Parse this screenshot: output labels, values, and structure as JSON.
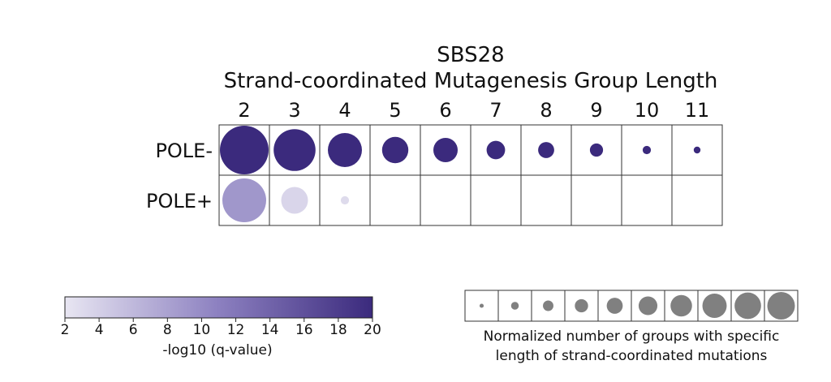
{
  "chart_data": {
    "type": "bubble-heatmap",
    "title": "SBS28",
    "subtitle": "Strand-coordinated Mutagenesis Group Length",
    "columns": [
      "2",
      "3",
      "4",
      "5",
      "6",
      "7",
      "8",
      "9",
      "10",
      "11"
    ],
    "rows": [
      {
        "label": "POLE-",
        "size": [
          1.0,
          0.86,
          0.7,
          0.54,
          0.5,
          0.38,
          0.33,
          0.27,
          0.17,
          0.14
        ],
        "neglog10_q": [
          20,
          20,
          20,
          20,
          20,
          20,
          20,
          20,
          20,
          20
        ]
      },
      {
        "label": "POLE+",
        "size": [
          0.9,
          0.55,
          0.17,
          null,
          null,
          null,
          null,
          null,
          null,
          null
        ],
        "neglog10_q": [
          9,
          3.5,
          3,
          null,
          null,
          null,
          null,
          null,
          null,
          null
        ]
      }
    ],
    "colorbar": {
      "label": "-log10 (q-value)",
      "range": [
        2,
        20
      ],
      "ticks": [
        "2",
        "4",
        "6",
        "8",
        "10",
        "12",
        "14",
        "16",
        "18",
        "20"
      ],
      "color_low": "#e8e6f2",
      "color_mid": "#8c80c0",
      "color_high": "#3b2a7d"
    },
    "size_legend": {
      "caption_line1": "Normalized number of groups with specific",
      "caption_line2": "length of strand-coordinated mutations",
      "sizes": [
        0.15,
        0.28,
        0.38,
        0.48,
        0.58,
        0.68,
        0.78,
        0.88,
        0.96,
        1.0
      ],
      "color": "#808080"
    }
  }
}
